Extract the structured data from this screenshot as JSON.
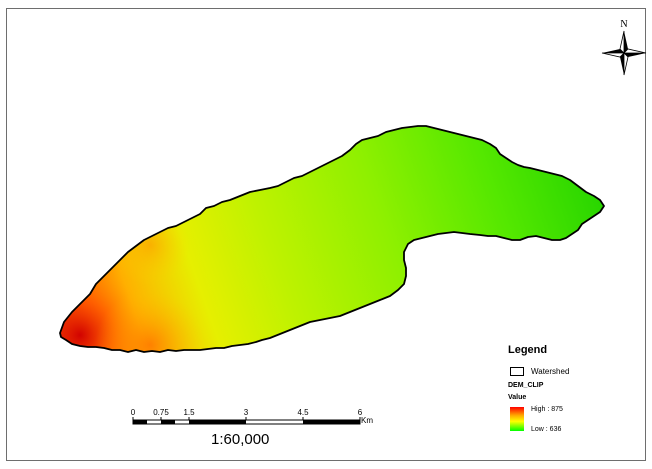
{
  "map": {
    "north_label": "N",
    "elevation_high_color": "#ff0000",
    "elevation_low_color": "#00ff00",
    "boundary_color": "#000000"
  },
  "legend": {
    "title": "Legend",
    "watershed_label": "Watershed",
    "layer_name": "DEM_CLIP",
    "value_label": "Value",
    "high_label": "High : 875",
    "low_label": "Low : 636"
  },
  "scale_bar": {
    "ticks": [
      "0",
      "0.75",
      "1.5",
      "3",
      "4.5",
      "6"
    ],
    "unit": "Km",
    "ratio": "1:60,000"
  }
}
